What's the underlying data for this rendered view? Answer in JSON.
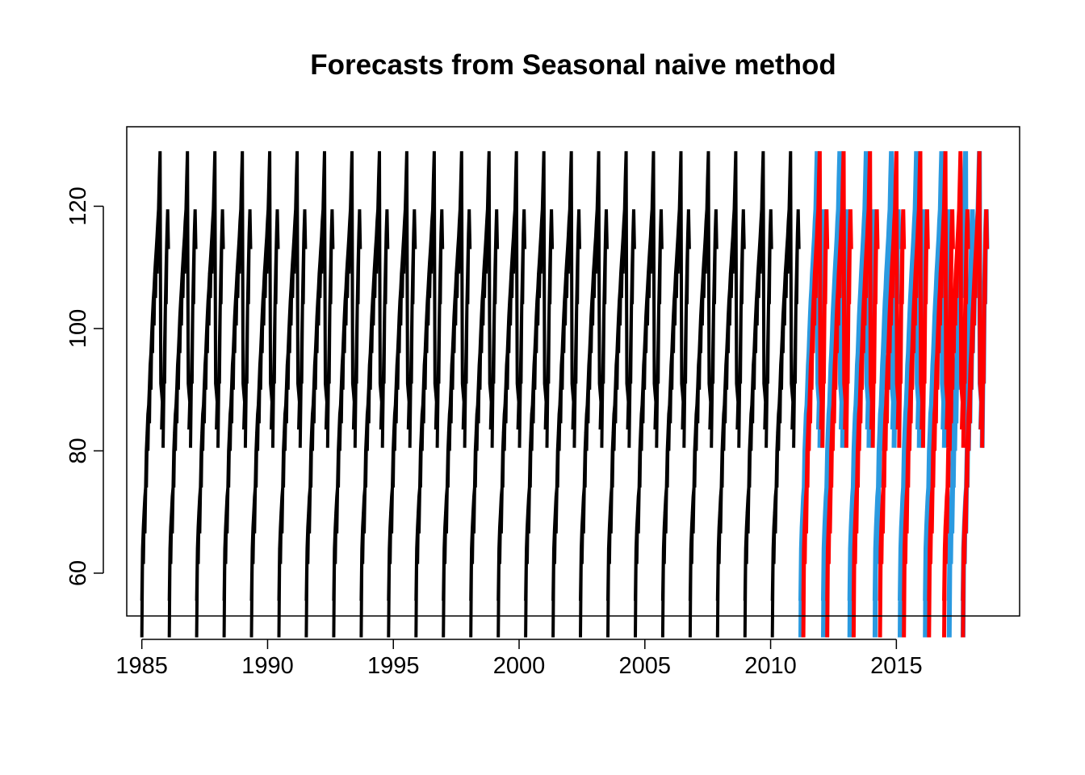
{
  "chart_data": {
    "type": "line",
    "title": "Forecasts from Seasonal naive method",
    "xlabel": "",
    "ylabel": "",
    "xlim": [
      1984.4,
      2019.9
    ],
    "ylim": [
      53,
      133
    ],
    "grid": false,
    "x_ticks": [
      1985,
      1990,
      1995,
      2000,
      2005,
      2010,
      2015
    ],
    "x_tick_labels": [
      "1985",
      "1990",
      "1995",
      "2000",
      "2005",
      "2010",
      "2015"
    ],
    "y_ticks": [
      60,
      80,
      100,
      120
    ],
    "y_tick_labels": [
      "60",
      "80",
      "100",
      "120"
    ],
    "cycle_pattern": [
      55.5,
      64,
      67.5,
      70,
      72.5,
      74,
      80,
      83,
      86,
      87.5,
      90.5,
      94,
      96,
      99,
      102,
      104.5,
      106.5,
      109,
      111,
      113,
      115,
      117.5,
      119.5,
      124.5,
      129,
      91,
      89.5,
      88,
      86.5,
      90.5,
      97,
      104,
      110,
      115.5,
      119.5,
      113
    ],
    "series": [
      {
        "role": "observed",
        "color": "#000000",
        "start": 1985.0,
        "cycle_length_years": 1.09,
        "cycles": 24,
        "end": 2011.2
      },
      {
        "role": "forecast-interval",
        "color": "#2b9ae0",
        "start": 2011.2,
        "end": 2018.0,
        "cycles_at": [
          2012.1,
          2013.15,
          2014.15,
          2015.15,
          2016.15,
          2017.1,
          2017.65
        ]
      },
      {
        "role": "forecast",
        "color": "#ff0000",
        "start": 2011.3,
        "end": 2018.0,
        "cycles_at": [
          2012.25,
          2013.3,
          2014.35,
          2015.3,
          2016.3,
          2016.9,
          2017.65
        ]
      }
    ]
  }
}
